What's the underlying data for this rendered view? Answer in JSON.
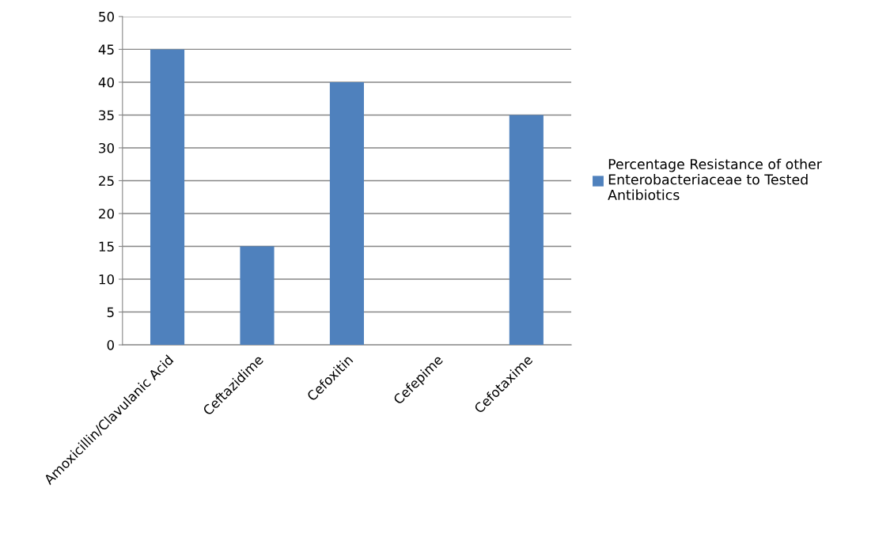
{
  "chart_data": {
    "type": "bar",
    "categories": [
      "Amoxicillin/Clavulanic Acid",
      "Ceftazidime",
      "Cefoxitin",
      "Cefepime",
      "Cefotaxime"
    ],
    "series": [
      {
        "name": "Percentage Resistance of other Enterobacteriaceae to Tested Antibiotics",
        "color": "#4f81bd",
        "values": [
          45,
          15,
          40,
          0,
          35
        ]
      }
    ],
    "ylim": [
      0,
      50
    ],
    "yticks": [
      0,
      5,
      10,
      15,
      20,
      25,
      30,
      35,
      40,
      45,
      50
    ],
    "grid": "y",
    "legend": "right"
  }
}
